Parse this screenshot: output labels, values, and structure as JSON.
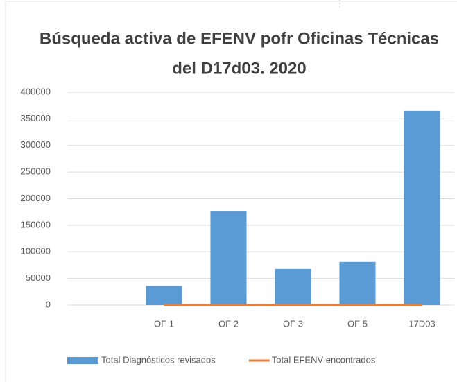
{
  "chart_data": {
    "type": "bar-line",
    "title": [
      "Búsqueda activa de EFENV pofr Oficinas Técnicas",
      "del D17d03. 2020"
    ],
    "categories": [
      null,
      "OF 1",
      "OF 2",
      "OF 3",
      "OF 5",
      "17D03"
    ],
    "series": [
      {
        "name": "Total Diagnósticos revisados",
        "color": "#5b9bd5",
        "kind": "bar",
        "values": [
          null,
          36000,
          177000,
          68000,
          81000,
          365000
        ]
      },
      {
        "name": "Total EFENV encontrados",
        "color": "#ed7d31",
        "kind": "line",
        "values": [
          null,
          20,
          60,
          30,
          40,
          150
        ]
      }
    ],
    "ylim": [
      0,
      400000
    ],
    "yticks": [
      0,
      50000,
      100000,
      150000,
      200000,
      250000,
      300000,
      350000,
      400000
    ],
    "grid": true,
    "legend": "bottom"
  }
}
